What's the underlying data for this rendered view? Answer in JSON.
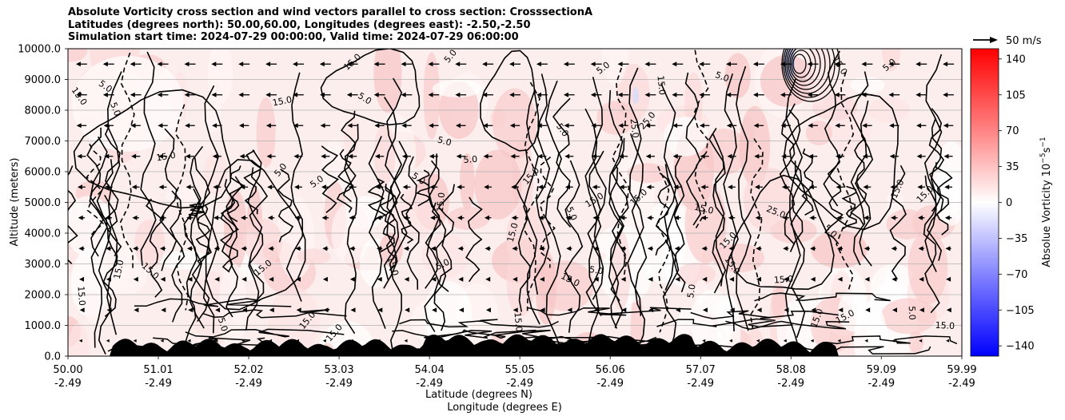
{
  "title": {
    "line1": "Absolute Vorticity cross section and wind vectors parallel to cross section: CrosssectionA",
    "line2": "Latitudes (degrees north): 50.00,60.00, Longitudes (degrees east): -2.50,-2.50",
    "line3": "Simulation start time: 2024-07-29 00:00:00, Valid time: 2024-07-29 06:00:00"
  },
  "quiver_key": {
    "label": "50 m/s"
  },
  "colorbar": {
    "label": "Absolue Vorticity 10",
    "label_exp": "−5",
    "label_unit": "s",
    "label_unit_exp": "−1",
    "ticks": [
      "140",
      "105",
      "70",
      "35",
      "0",
      "−35",
      "−70",
      "−105",
      "−140"
    ],
    "tick_values": [
      140,
      105,
      70,
      35,
      0,
      -35,
      -70,
      -105,
      -140
    ],
    "range": [
      -150,
      150
    ]
  },
  "chart_data": {
    "type": "heatmap",
    "title": "Absolute Vorticity cross section and wind vectors parallel to cross section: CrosssectionA",
    "xlabel": "Latitude (degrees N)",
    "xlabel2": "Longitude (degrees E)",
    "ylabel": "Altitude (meters)",
    "ylim": [
      0,
      10000
    ],
    "xlim": [
      50.0,
      59.99
    ],
    "yticks": [
      "0.0",
      "1000.0",
      "2000.0",
      "3000.0",
      "4000.0",
      "5000.0",
      "6000.0",
      "7000.0",
      "8000.0",
      "9000.0",
      "10000.0"
    ],
    "ytick_values": [
      0,
      1000,
      2000,
      3000,
      4000,
      5000,
      6000,
      7000,
      8000,
      9000,
      10000
    ],
    "xticks_lat": [
      "50.00",
      "51.01",
      "52.02",
      "53.03",
      "54.04",
      "55.05",
      "56.06",
      "57.07",
      "58.08",
      "59.09",
      "59.99"
    ],
    "xtick_values": [
      50.0,
      51.01,
      52.02,
      53.03,
      54.04,
      55.05,
      56.06,
      57.07,
      58.08,
      59.09,
      59.99
    ],
    "xticks_lon": [
      "-2.49",
      "-2.49",
      "-2.49",
      "-2.49",
      "-2.49",
      "-2.49",
      "-2.49",
      "-2.49",
      "-2.49",
      "-2.49",
      "-2.49"
    ],
    "grid": "horizontal",
    "contour_labels": [
      {
        "text": "15.0",
        "lat": 50.12,
        "alt": 1950
      },
      {
        "text": "15.0",
        "lat": 50.6,
        "alt": 2800
      },
      {
        "text": "15.0",
        "lat": 50.9,
        "alt": 2700
      },
      {
        "text": "15.0",
        "lat": 52.2,
        "alt": 2800
      },
      {
        "text": "15.0",
        "lat": 53.6,
        "alt": 2900
      },
      {
        "text": "5.0",
        "lat": 54.2,
        "alt": 2900
      },
      {
        "text": "15.0",
        "lat": 54.2,
        "alt": 5000
      },
      {
        "text": "15.0",
        "lat": 55.0,
        "alt": 4000
      },
      {
        "text": "5.0",
        "lat": 54.2,
        "alt": 6900
      },
      {
        "text": "5.0",
        "lat": 54.5,
        "alt": 6300
      },
      {
        "text": "5.0",
        "lat": 53.9,
        "alt": 5700
      },
      {
        "text": "15.0",
        "lat": 51.1,
        "alt": 6400
      },
      {
        "text": "5.0",
        "lat": 52.4,
        "alt": 6000
      },
      {
        "text": "5.0",
        "lat": 52.8,
        "alt": 5600
      },
      {
        "text": "15.0",
        "lat": 52.4,
        "alt": 8200
      },
      {
        "text": "15.0",
        "lat": 50.1,
        "alt": 8400
      },
      {
        "text": "5.0",
        "lat": 50.4,
        "alt": 8700
      },
      {
        "text": "5.0",
        "lat": 50.5,
        "alt": 8000
      },
      {
        "text": "5.0",
        "lat": 53.3,
        "alt": 8300
      },
      {
        "text": "15.0",
        "lat": 53.2,
        "alt": 9500
      },
      {
        "text": "5.0",
        "lat": 54.3,
        "alt": 9700
      },
      {
        "text": "15.0",
        "lat": 56.6,
        "alt": 8800
      },
      {
        "text": "25.0",
        "lat": 56.5,
        "alt": 7600
      },
      {
        "text": "15.0",
        "lat": 57.1,
        "alt": 4700
      },
      {
        "text": "15.0",
        "lat": 57.4,
        "alt": 3700
      },
      {
        "text": "25.0",
        "lat": 57.9,
        "alt": 4600
      },
      {
        "text": "15.0",
        "lat": 58.0,
        "alt": 2400
      },
      {
        "text": "15.0",
        "lat": 58.4,
        "alt": 1200
      },
      {
        "text": "15.0",
        "lat": 59.6,
        "alt": 5200
      },
      {
        "text": "15.0",
        "lat": 59.3,
        "alt": 5400
      },
      {
        "text": "5.0",
        "lat": 58.5,
        "alt": 4000
      },
      {
        "text": "15.0",
        "lat": 57.4,
        "alt": 2900
      },
      {
        "text": "5.0",
        "lat": 57.0,
        "alt": 2100
      },
      {
        "text": "15.0",
        "lat": 55.6,
        "alt": 2400
      },
      {
        "text": "5.0",
        "lat": 55.9,
        "alt": 2700
      },
      {
        "text": "15.0",
        "lat": 55.9,
        "alt": 5000
      },
      {
        "text": "5.0",
        "lat": 55.6,
        "alt": 4600
      },
      {
        "text": "25.0",
        "lat": 56.3,
        "alt": 7400
      },
      {
        "text": "15.0",
        "lat": 55.2,
        "alt": 5800
      },
      {
        "text": "5.0",
        "lat": 55.5,
        "alt": 7300
      },
      {
        "text": "15.0",
        "lat": 56.4,
        "alt": 5100
      },
      {
        "text": "15.0",
        "lat": 55.0,
        "alt": 1100
      },
      {
        "text": "15.0",
        "lat": 58.7,
        "alt": 1200
      },
      {
        "text": "5.0",
        "lat": 59.4,
        "alt": 1400
      },
      {
        "text": "15.0",
        "lat": 59.8,
        "alt": 900
      },
      {
        "text": "5.0",
        "lat": 51.7,
        "alt": 1000
      },
      {
        "text": "15.0",
        "lat": 52.7,
        "alt": 1100
      },
      {
        "text": "15.0",
        "lat": 53.0,
        "alt": 700
      },
      {
        "text": "5.0",
        "lat": 56.0,
        "alt": 9300
      },
      {
        "text": "5.0",
        "lat": 57.3,
        "alt": 9000
      },
      {
        "text": "15.0",
        "lat": 58.6,
        "alt": 9400
      },
      {
        "text": "5.0",
        "lat": 59.2,
        "alt": 9400
      }
    ]
  }
}
